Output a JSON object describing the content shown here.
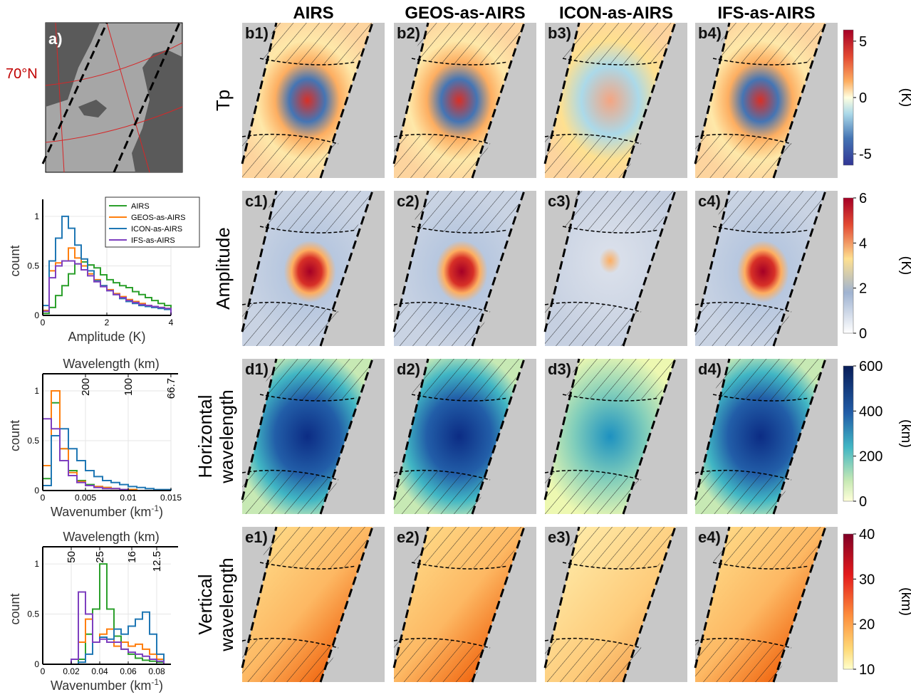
{
  "columns": [
    "AIRS",
    "GEOS-as-AIRS",
    "ICON-as-AIRS",
    "IFS-as-AIRS"
  ],
  "rows": [
    {
      "label_lines": [
        "Tp"
      ],
      "panel_tags": [
        "b1)",
        "b2)",
        "b3)",
        "b4)"
      ],
      "colorbar": {
        "ticks": [
          "5",
          "0",
          "-5"
        ],
        "tick_values": [
          5,
          0,
          -5
        ],
        "range": [
          -6,
          6
        ],
        "unit": "(K)",
        "colormap": "diverging-red-blue"
      }
    },
    {
      "label_lines": [
        "Amplitude"
      ],
      "panel_tags": [
        "c1)",
        "c2)",
        "c3)",
        "c4)"
      ],
      "colorbar": {
        "ticks": [
          "6",
          "4",
          "2",
          "0"
        ],
        "tick_values": [
          6,
          4,
          2,
          0
        ],
        "range": [
          0,
          6
        ],
        "unit": "(K)",
        "colormap": "white-blue-yellow-red"
      }
    },
    {
      "label_lines": [
        "Horizontal",
        "wavelength"
      ],
      "panel_tags": [
        "d1)",
        "d2)",
        "d3)",
        "d4)"
      ],
      "colorbar": {
        "ticks": [
          "600",
          "400",
          "200",
          "0"
        ],
        "tick_values": [
          600,
          400,
          200,
          0
        ],
        "range": [
          0,
          600
        ],
        "unit": "(km)",
        "colormap": "yellow-green-blue"
      }
    },
    {
      "label_lines": [
        "Vertical",
        "wavelength"
      ],
      "panel_tags": [
        "e1)",
        "e2)",
        "e3)",
        "e4)"
      ],
      "colorbar": {
        "ticks": [
          "40",
          "30",
          "20",
          "10"
        ],
        "tick_values": [
          40,
          30,
          20,
          10
        ],
        "range": [
          10,
          40
        ],
        "unit": "(km)",
        "colormap": "yellow-orange-red"
      }
    }
  ],
  "map_panel": {
    "tag": "a)",
    "lat_label": "70°N"
  },
  "chart_data": [
    {
      "type": "line",
      "panel": "amplitude-histogram",
      "xlabel": "Amplitude (K)",
      "ylabel": "count",
      "xlim": [
        0,
        4
      ],
      "ylim": [
        0,
        1.1
      ],
      "xticks": [
        "0",
        "2",
        "4"
      ],
      "xtick_values": [
        0,
        2,
        4
      ],
      "yticks": [
        "0",
        "0.5",
        "1"
      ],
      "ytick_values": [
        0,
        0.5,
        1
      ],
      "grid": true,
      "legend": "top-right",
      "bin_edges": [
        0,
        0.2,
        0.4,
        0.6,
        0.8,
        1.0,
        1.2,
        1.4,
        1.6,
        1.8,
        2.0,
        2.2,
        2.4,
        2.6,
        2.8,
        3.0,
        3.2,
        3.4,
        3.6,
        3.8,
        4.0
      ],
      "series": [
        {
          "name": "AIRS",
          "color": "#2ca02c",
          "values": [
            0.02,
            0.08,
            0.2,
            0.3,
            0.42,
            0.52,
            0.54,
            0.51,
            0.48,
            0.41,
            0.36,
            0.33,
            0.3,
            0.28,
            0.24,
            0.21,
            0.18,
            0.15,
            0.12,
            0.1
          ]
        },
        {
          "name": "GEOS-as-AIRS",
          "color": "#ff7f0e",
          "values": [
            0.05,
            0.45,
            0.53,
            0.55,
            0.68,
            0.58,
            0.5,
            0.42,
            0.36,
            0.3,
            0.26,
            0.22,
            0.19,
            0.16,
            0.14,
            0.12,
            0.1,
            0.09,
            0.08,
            0.07
          ]
        },
        {
          "name": "ICON-as-AIRS",
          "color": "#1f77b4",
          "values": [
            0.1,
            0.55,
            0.78,
            1.0,
            0.88,
            0.71,
            0.57,
            0.45,
            0.35,
            0.3,
            0.25,
            0.21,
            0.17,
            0.14,
            0.12,
            0.1,
            0.09,
            0.08,
            0.07,
            0.06
          ]
        },
        {
          "name": "IFS-as-AIRS",
          "color": "#7e3fbf",
          "values": [
            0.04,
            0.38,
            0.5,
            0.55,
            0.55,
            0.52,
            0.46,
            0.4,
            0.34,
            0.29,
            0.25,
            0.21,
            0.18,
            0.15,
            0.13,
            0.11,
            0.1,
            0.09,
            0.08,
            0.07
          ]
        }
      ]
    },
    {
      "type": "line",
      "panel": "horizontal-wavenumber-histogram",
      "xlabel": "Wavenumber (km",
      "xlabel_sup": "-1",
      "xlabel_end": ")",
      "ylabel": "count",
      "top_axis_label": "Wavelength (km)",
      "top_ticks": [
        "200",
        "100",
        "66.7"
      ],
      "top_tick_values": [
        200,
        100,
        66.7
      ],
      "xlim": [
        0,
        0.015
      ],
      "ylim": [
        0,
        1.1
      ],
      "xticks": [
        "0",
        "0.005",
        "0.01",
        "0.015"
      ],
      "xtick_values": [
        0,
        0.005,
        0.01,
        0.015
      ],
      "yticks": [
        "0",
        "0.5",
        "1"
      ],
      "ytick_values": [
        0,
        0.5,
        1
      ],
      "grid": true,
      "bin_edges": [
        0,
        0.001,
        0.002,
        0.003,
        0.004,
        0.005,
        0.006,
        0.007,
        0.008,
        0.009,
        0.01,
        0.011,
        0.012,
        0.013,
        0.014,
        0.015
      ],
      "series": [
        {
          "name": "AIRS",
          "color": "#2ca02c",
          "values": [
            0.12,
            0.88,
            0.42,
            0.2,
            0.1,
            0.06,
            0.04,
            0.03,
            0.02,
            0.01,
            0.01,
            0.0,
            0.0,
            0.0,
            0.0
          ]
        },
        {
          "name": "GEOS-as-AIRS",
          "color": "#ff7f0e",
          "values": [
            0.25,
            1.0,
            0.42,
            0.18,
            0.09,
            0.05,
            0.04,
            0.03,
            0.02,
            0.01,
            0.01,
            0.0,
            0.0,
            0.0,
            0.0
          ]
        },
        {
          "name": "ICON-as-AIRS",
          "color": "#1f77b4",
          "values": [
            0.05,
            0.55,
            0.62,
            0.42,
            0.3,
            0.2,
            0.14,
            0.1,
            0.08,
            0.06,
            0.04,
            0.03,
            0.02,
            0.01,
            0.01
          ]
        },
        {
          "name": "IFS-as-AIRS",
          "color": "#7e3fbf",
          "values": [
            0.72,
            0.62,
            0.3,
            0.15,
            0.08,
            0.05,
            0.03,
            0.02,
            0.02,
            0.01,
            0.0,
            0.0,
            0.0,
            0.0,
            0.0
          ]
        }
      ]
    },
    {
      "type": "line",
      "panel": "vertical-wavenumber-histogram",
      "xlabel": "Wavenumber (km",
      "xlabel_sup": "-1",
      "xlabel_end": ")",
      "ylabel": "count",
      "top_axis_label": "Wavelength (km)",
      "top_ticks": [
        "50",
        "25",
        "16",
        "12.5"
      ],
      "top_tick_values": [
        50,
        25,
        16,
        12.5
      ],
      "xlim": [
        0,
        0.09
      ],
      "ylim": [
        0,
        1.1
      ],
      "xticks": [
        "0",
        "0.02",
        "0.04",
        "0.06",
        "0.08"
      ],
      "xtick_values": [
        0,
        0.02,
        0.04,
        0.06,
        0.08
      ],
      "yticks": [
        "0",
        "0.5",
        "1"
      ],
      "ytick_values": [
        0,
        0.5,
        1
      ],
      "grid": true,
      "bin_edges": [
        0.02,
        0.025,
        0.03,
        0.035,
        0.04,
        0.045,
        0.05,
        0.055,
        0.06,
        0.065,
        0.07,
        0.075,
        0.08,
        0.085
      ],
      "series": [
        {
          "name": "AIRS",
          "color": "#2ca02c",
          "values": [
            0.0,
            0.05,
            0.3,
            0.55,
            1.0,
            0.55,
            0.28,
            0.15,
            0.1,
            0.06,
            0.04,
            0.03,
            0.02
          ]
        },
        {
          "name": "GEOS-as-AIRS",
          "color": "#ff7f0e",
          "values": [
            0.05,
            0.22,
            0.45,
            0.22,
            0.3,
            0.35,
            0.18,
            0.22,
            0.18,
            0.2,
            0.15,
            0.1,
            0.05
          ]
        },
        {
          "name": "ICON-as-AIRS",
          "color": "#1f77b4",
          "values": [
            0.0,
            0.02,
            0.1,
            0.22,
            0.27,
            0.25,
            0.35,
            0.3,
            0.38,
            0.45,
            0.52,
            0.3,
            0.1
          ]
        },
        {
          "name": "IFS-as-AIRS",
          "color": "#7e3fbf",
          "values": [
            0.05,
            0.72,
            0.5,
            0.22,
            0.25,
            0.22,
            0.22,
            0.15,
            0.12,
            0.1,
            0.08,
            0.05,
            0.03
          ]
        }
      ]
    }
  ]
}
